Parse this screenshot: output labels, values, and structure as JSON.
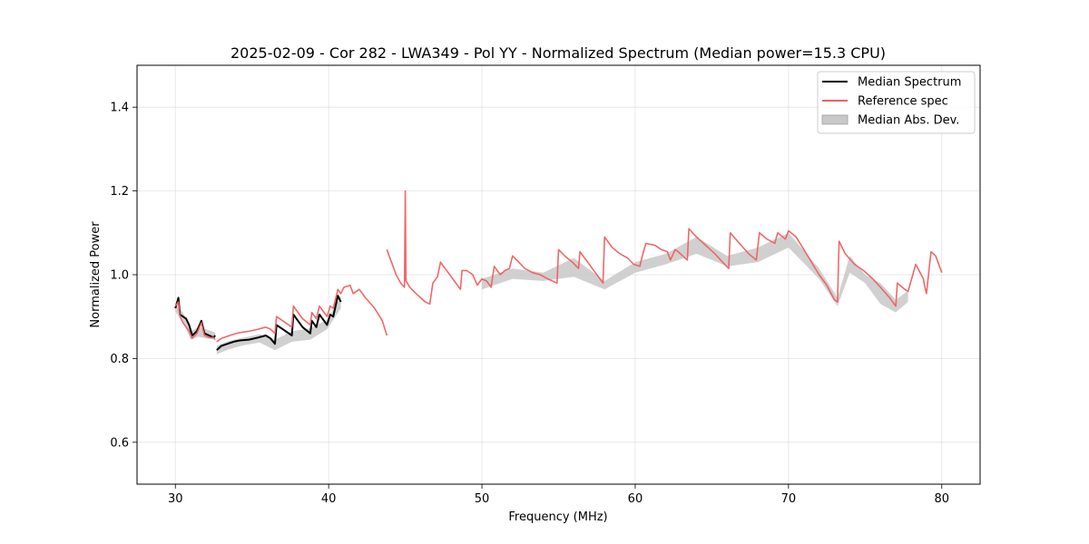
{
  "chart_data": {
    "type": "line",
    "title": "2025-02-09 - Cor 282 - LWA349 - Pol YY - Normalized Spectrum (Median power=15.3 CPU)",
    "xlabel": "Frequency (MHz)",
    "ylabel": "Normalized Power",
    "xlim": [
      27.5,
      82.5
    ],
    "ylim": [
      0.5,
      1.5
    ],
    "xticks": [
      30,
      40,
      50,
      60,
      70,
      80
    ],
    "yticks": [
      0.6,
      0.8,
      1.0,
      1.2,
      1.4
    ],
    "xtick_labels": [
      "30",
      "40",
      "50",
      "60",
      "70",
      "80"
    ],
    "ytick_labels": [
      "0.6",
      "0.8",
      "1.0",
      "1.2",
      "1.4"
    ],
    "grid": true,
    "legend_position": "top-right",
    "legend": [
      {
        "label": "Median Spectrum",
        "kind": "line",
        "color": "#000000"
      },
      {
        "label": "Reference spec",
        "kind": "line",
        "color": "#f06060"
      },
      {
        "label": "Median Abs. Dev.",
        "kind": "patch",
        "color": "#c8c8c8"
      }
    ],
    "series": [
      {
        "name": "Median Spectrum",
        "color": "#000000",
        "segments": [
          {
            "x": [
              30.0,
              30.2,
              30.3,
              30.5,
              30.7,
              30.9,
              31.1,
              31.4,
              31.7,
              31.9,
              32.2,
              32.5,
              32.6
            ],
            "y": [
              0.92,
              0.945,
              0.905,
              0.9,
              0.895,
              0.88,
              0.855,
              0.865,
              0.89,
              0.86,
              0.855,
              0.85,
              0.855
            ]
          },
          {
            "x": [
              32.7,
              33.0,
              33.4,
              33.8,
              34.2,
              34.8,
              35.4,
              35.9,
              36.2,
              36.5,
              36.6,
              37.0,
              37.6,
              37.7,
              38.3,
              38.8,
              38.9,
              39.2,
              39.4,
              39.7,
              39.9,
              40.1,
              40.3,
              40.6,
              40.8
            ],
            "y": [
              0.82,
              0.83,
              0.835,
              0.84,
              0.843,
              0.845,
              0.85,
              0.855,
              0.848,
              0.835,
              0.88,
              0.87,
              0.855,
              0.905,
              0.875,
              0.86,
              0.89,
              0.875,
              0.905,
              0.89,
              0.88,
              0.905,
              0.9,
              0.95,
              0.935
            ]
          }
        ]
      },
      {
        "name": "Reference spec",
        "color": "#f06060",
        "segments": [
          {
            "x": [
              30.0,
              30.2,
              30.3,
              30.5,
              30.7,
              30.9,
              31.1,
              31.4,
              31.7,
              31.9,
              32.2,
              32.5,
              32.6
            ],
            "y": [
              0.925,
              0.935,
              0.9,
              0.885,
              0.875,
              0.865,
              0.848,
              0.86,
              0.885,
              0.855,
              0.85,
              0.85,
              0.845
            ]
          },
          {
            "x": [
              32.7,
              33.0,
              33.4,
              33.8,
              34.2,
              34.8,
              35.4,
              35.9,
              36.2,
              36.5,
              36.6,
              37.0,
              37.6,
              37.7,
              38.3,
              38.8,
              38.9,
              39.2,
              39.4,
              39.7,
              39.9,
              40.1,
              40.3,
              40.6,
              40.8,
              41.0,
              41.4,
              41.6,
              42.0,
              42.4,
              43.0,
              43.5,
              43.8
            ],
            "y": [
              0.84,
              0.848,
              0.853,
              0.858,
              0.862,
              0.865,
              0.87,
              0.875,
              0.87,
              0.86,
              0.9,
              0.89,
              0.875,
              0.925,
              0.895,
              0.88,
              0.91,
              0.895,
              0.925,
              0.91,
              0.9,
              0.925,
              0.92,
              0.965,
              0.955,
              0.97,
              0.975,
              0.955,
              0.965,
              0.945,
              0.92,
              0.89,
              0.855
            ]
          },
          {
            "x": [
              43.8,
              44.1,
              44.4,
              44.7,
              44.95,
              45.0,
              45.05,
              45.3,
              45.7,
              46.0,
              46.3,
              46.6,
              46.8,
              47.1,
              47.3,
              47.5,
              47.8,
              48.2,
              48.6,
              48.7,
              49.0,
              49.4,
              49.7,
              50.0,
              50.3,
              50.6,
              50.8,
              51.2,
              51.5,
              51.8,
              52.0,
              52.4,
              52.8,
              53.3,
              53.8,
              54.3,
              54.9,
              55.0,
              55.4,
              55.9,
              56.3,
              56.4,
              56.9,
              57.4,
              57.9,
              58.0,
              58.5,
              59.0,
              59.5,
              59.9,
              60.3,
              60.5,
              60.7,
              61.3,
              61.7,
              62.1,
              62.3,
              62.6,
              62.8,
              63.1,
              63.4,
              63.5,
              64.0,
              64.6,
              65.2,
              65.7,
              66.1,
              66.2,
              66.8,
              67.4,
              67.9,
              68.1,
              68.6,
              69.1,
              69.3,
              69.8,
              70.0,
              70.5,
              71.0,
              71.5,
              72.0,
              72.5,
              73.0,
              73.2,
              73.3,
              73.7,
              74.3,
              74.9,
              75.5,
              76.0,
              76.6,
              76.8,
              77.0,
              77.1,
              77.6,
              77.8,
              78.3,
              78.8,
              78.9,
              79.0,
              79.3,
              79.6,
              80.0
            ],
            "y": [
              1.06,
              1.03,
              1.0,
              0.98,
              0.97,
              1.2,
              0.985,
              0.97,
              0.955,
              0.945,
              0.935,
              0.93,
              0.98,
              0.995,
              1.03,
              1.02,
              1.005,
              0.985,
              0.965,
              1.01,
              1.01,
              1.0,
              0.975,
              0.99,
              0.985,
              0.97,
              1.02,
              1.0,
              1.01,
              1.015,
              1.045,
              1.03,
              1.015,
              1.005,
              1.0,
              0.99,
              0.98,
              1.06,
              1.045,
              1.03,
              1.015,
              1.055,
              1.03,
              1.005,
              0.98,
              1.09,
              1.065,
              1.05,
              1.04,
              1.025,
              1.02,
              1.05,
              1.075,
              1.07,
              1.06,
              1.055,
              1.035,
              1.06,
              1.055,
              1.045,
              1.035,
              1.11,
              1.09,
              1.07,
              1.05,
              1.03,
              1.015,
              1.1,
              1.075,
              1.05,
              1.035,
              1.1,
              1.085,
              1.075,
              1.1,
              1.085,
              1.105,
              1.09,
              1.06,
              1.03,
              1.0,
              0.975,
              0.94,
              0.935,
              1.08,
              1.05,
              1.025,
              1.01,
              0.99,
              0.97,
              0.945,
              0.935,
              0.925,
              0.98,
              0.965,
              0.96,
              1.025,
              0.99,
              0.97,
              0.955,
              1.055,
              1.045,
              1.005
            ]
          }
        ]
      }
    ],
    "mad_band": {
      "name": "Median Abs. Dev.",
      "color": "#c8c8c8",
      "segments": [
        {
          "x": [
            30.0,
            30.5,
            31.0,
            31.5,
            32.0,
            32.6
          ],
          "y_low": [
            0.912,
            0.888,
            0.845,
            0.852,
            0.848,
            0.845
          ],
          "y_high": [
            0.93,
            0.91,
            0.865,
            0.875,
            0.87,
            0.862
          ]
        },
        {
          "x": [
            32.7,
            33.5,
            34.5,
            35.5,
            36.5,
            37.6,
            38.8,
            39.9,
            40.8
          ],
          "y_low": [
            0.81,
            0.822,
            0.832,
            0.838,
            0.82,
            0.84,
            0.845,
            0.87,
            0.92
          ],
          "y_high": [
            0.83,
            0.842,
            0.85,
            0.858,
            0.845,
            0.865,
            0.872,
            0.892,
            0.948
          ]
        },
        {
          "x": [
            50.0,
            52.0,
            54.0,
            56.0,
            58.0,
            60.0,
            62.0,
            64.0,
            66.0,
            68.0,
            70.0,
            72.0,
            73.2,
            74.0,
            75.0,
            76.0,
            77.0,
            77.8
          ],
          "y_low": [
            0.965,
            0.99,
            0.985,
            0.995,
            0.965,
            1.005,
            1.025,
            1.05,
            1.02,
            1.03,
            1.065,
            0.99,
            0.925,
            1.005,
            0.98,
            0.93,
            0.91,
            0.935
          ],
          "y_high": [
            0.99,
            1.015,
            1.005,
            1.04,
            0.985,
            1.03,
            1.05,
            1.09,
            1.045,
            1.065,
            1.1,
            1.015,
            0.945,
            1.045,
            1.0,
            0.98,
            0.94,
            0.962
          ]
        }
      ]
    }
  }
}
